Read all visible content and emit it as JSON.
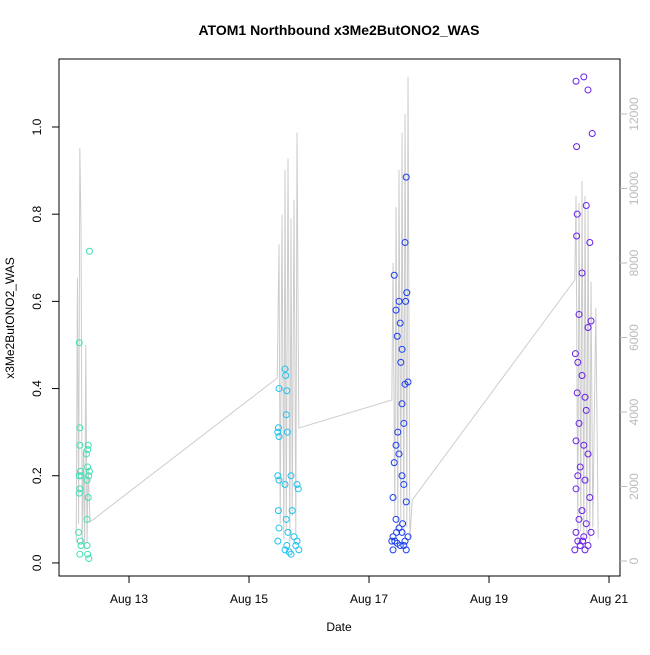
{
  "chart_data": {
    "type": "scatter",
    "title": "ATOM1 Northbound x3Me2ButONO2_WAS",
    "x_label": "Date",
    "y_label": "x3Me2ButONO2_WAS",
    "xlim": [
      11.833,
      21.183
    ],
    "xticks": [
      {
        "value": 13,
        "label": "Aug 13"
      },
      {
        "value": 15,
        "label": "Aug 15"
      },
      {
        "value": 17,
        "label": "Aug 17"
      },
      {
        "value": 19,
        "label": "Aug 19"
      },
      {
        "value": 21,
        "label": "Aug 21"
      }
    ],
    "ylim": [
      -0.03,
      1.156
    ],
    "yticks": [
      {
        "value": 0,
        "label": "0.0"
      },
      0.2,
      0.4,
      0.6,
      0.8,
      {
        "value": 1,
        "label": "1.0"
      }
    ],
    "y2lim": [
      -403,
      13477
    ],
    "y2ticks": [
      0,
      2000,
      4000,
      6000,
      8000,
      10000,
      12000
    ],
    "series": [
      {
        "color": "#3fe0b4",
        "x": [
          12.17,
          12.18,
          12.18,
          12.17,
          12.19,
          12.18,
          12.17,
          12.16,
          12.19,
          12.2,
          12.18,
          12.34,
          12.32,
          12.31,
          12.31,
          12.33,
          12.3,
          12.32,
          12.3,
          12.31,
          12.33,
          12.29,
          12.34,
          12.3,
          12.2
        ],
        "values": [
          0.505,
          0.31,
          0.27,
          0.2,
          0.21,
          0.17,
          0.16,
          0.07,
          0.05,
          0.04,
          0.02,
          0.715,
          0.27,
          0.26,
          0.22,
          0.2,
          0.19,
          0.15,
          0.1,
          0.02,
          0.01,
          0.25,
          0.21,
          0.04,
          0.2
        ]
      },
      {
        "color": "#1fc2ee",
        "x": [
          15.5,
          15.49,
          15.48,
          15.5,
          15.48,
          15.5,
          15.49,
          15.5,
          15.48,
          15.6,
          15.61,
          15.63,
          15.62,
          15.64,
          15.6,
          15.62,
          15.65,
          15.63,
          15.6,
          15.7,
          15.72,
          15.75,
          15.78,
          15.8,
          15.82,
          15.8,
          15.83,
          15.67,
          15.7
        ],
        "values": [
          0.4,
          0.31,
          0.3,
          0.29,
          0.2,
          0.19,
          0.12,
          0.08,
          0.05,
          0.445,
          0.43,
          0.395,
          0.34,
          0.3,
          0.18,
          0.1,
          0.07,
          0.04,
          0.03,
          0.2,
          0.12,
          0.06,
          0.04,
          0.18,
          0.17,
          0.05,
          0.03,
          0.025,
          0.02
        ]
      },
      {
        "color": "#1a3ef0",
        "x": [
          17.42,
          17.45,
          17.5,
          17.52,
          17.47,
          17.55,
          17.53,
          17.62,
          17.6,
          17.63,
          17.61,
          17.6,
          17.65,
          17.55,
          17.58,
          17.48,
          17.45,
          17.5,
          17.42,
          17.55,
          17.58,
          17.4,
          17.62,
          17.45,
          17.5,
          17.55,
          17.4,
          17.43,
          17.47,
          17.52,
          17.58,
          17.6,
          17.65,
          17.62,
          17.4,
          17.46,
          17.56,
          17.38
        ],
        "values": [
          0.66,
          0.58,
          0.6,
          0.55,
          0.52,
          0.49,
          0.46,
          0.885,
          0.735,
          0.62,
          0.6,
          0.41,
          0.415,
          0.365,
          0.32,
          0.3,
          0.27,
          0.25,
          0.23,
          0.2,
          0.18,
          0.15,
          0.14,
          0.1,
          0.08,
          0.07,
          0.06,
          0.05,
          0.045,
          0.04,
          0.04,
          0.05,
          0.06,
          0.03,
          0.03,
          0.07,
          0.09,
          0.05
        ]
      },
      {
        "color": "#6a1fe6",
        "x": [
          20.45,
          20.58,
          20.65,
          20.72,
          20.46,
          20.62,
          20.47,
          20.68,
          20.46,
          20.55,
          20.5,
          20.7,
          20.65,
          20.44,
          20.48,
          20.55,
          20.6,
          20.47,
          20.62,
          20.5,
          20.45,
          20.58,
          20.65,
          20.52,
          20.48,
          20.6,
          20.45,
          20.68,
          20.55,
          20.5,
          20.62,
          20.45,
          20.58,
          20.7,
          20.48,
          20.52,
          20.6,
          20.65,
          20.43,
          20.56
        ],
        "values": [
          1.105,
          1.115,
          1.085,
          0.985,
          0.955,
          0.82,
          0.8,
          0.735,
          0.75,
          0.665,
          0.57,
          0.555,
          0.54,
          0.48,
          0.46,
          0.43,
          0.38,
          0.39,
          0.35,
          0.32,
          0.28,
          0.27,
          0.25,
          0.22,
          0.2,
          0.19,
          0.17,
          0.15,
          0.12,
          0.1,
          0.09,
          0.07,
          0.06,
          0.07,
          0.05,
          0.04,
          0.03,
          0.04,
          0.03,
          0.05
        ]
      },
      {
        "color": "#cccccc",
        "axis": "y2",
        "line": true,
        "x": [
          12.12,
          12.14,
          12.16,
          12.18,
          12.2,
          12.22,
          12.24,
          12.26,
          12.28,
          12.3,
          12.32,
          12.35,
          15.47,
          15.5,
          15.52,
          15.55,
          15.58,
          15.6,
          15.62,
          15.65,
          15.68,
          15.7,
          15.72,
          15.75,
          15.78,
          15.8,
          15.83,
          17.38,
          17.4,
          17.43,
          17.45,
          17.48,
          17.5,
          17.53,
          17.55,
          17.58,
          17.6,
          17.63,
          17.65,
          17.68,
          17.72,
          20.43,
          20.45,
          20.48,
          20.5,
          20.53,
          20.55,
          20.58,
          20.6,
          20.63,
          20.65,
          20.68,
          20.7,
          20.73,
          20.78,
          20.82
        ],
        "values": [
          500,
          7600,
          1000,
          11087,
          9000,
          500,
          3000,
          300,
          5800,
          500,
          2500,
          1047,
          4913,
          8500,
          1000,
          9300,
          600,
          10500,
          800,
          10800,
          500,
          9200,
          1200,
          9700,
          700,
          11500,
          3570,
          4322,
          8000,
          1200,
          9500,
          800,
          10500,
          1000,
          11500,
          700,
          12000,
          900,
          13000,
          600,
          1637,
          7544,
          9800,
          500,
          9600,
          800,
          10200,
          600,
          9800,
          700,
          9500,
          500,
          7500,
          900,
          6800,
          600
        ]
      }
    ]
  }
}
